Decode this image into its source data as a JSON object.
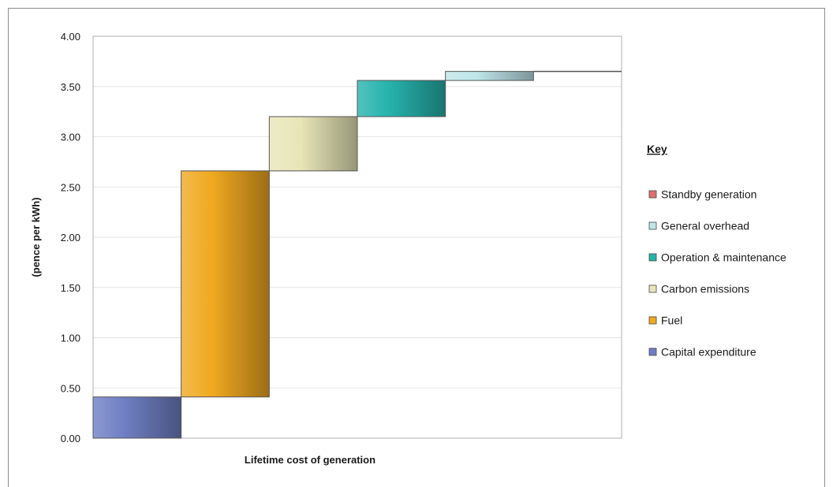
{
  "chart_data": {
    "type": "bar",
    "subtype": "waterfall",
    "title": "",
    "xlabel": "Lifetime cost of generation",
    "ylabel": "(pence per kWh)",
    "ylim": [
      0,
      4
    ],
    "yticks": [
      "0.00",
      "0.50",
      "1.00",
      "1.50",
      "2.00",
      "2.50",
      "3.00",
      "3.50",
      "4.00"
    ],
    "grid": true,
    "legend_title": "Key",
    "legend_position": "right",
    "series": [
      {
        "name": "Capital expenditure",
        "base": 0,
        "value": 0.41,
        "color": "#6f7fc4"
      },
      {
        "name": "Fuel",
        "base": 0.41,
        "value": 2.25,
        "color": "#f0a920"
      },
      {
        "name": "Carbon emissions",
        "base": 2.66,
        "value": 0.54,
        "color": "#e8e6b8"
      },
      {
        "name": "Operation & maintenance",
        "base": 3.2,
        "value": 0.36,
        "color": "#27b3ad"
      },
      {
        "name": "General overhead",
        "base": 3.56,
        "value": 0.09,
        "color": "#bfe6ea"
      },
      {
        "name": "Standby generation",
        "base": 3.65,
        "value": 0.0,
        "color": "#e07070"
      }
    ],
    "legend_order": [
      "Standby generation",
      "General overhead",
      "Operation & maintenance",
      "Carbon emissions",
      "Fuel",
      "Capital expenditure"
    ]
  }
}
